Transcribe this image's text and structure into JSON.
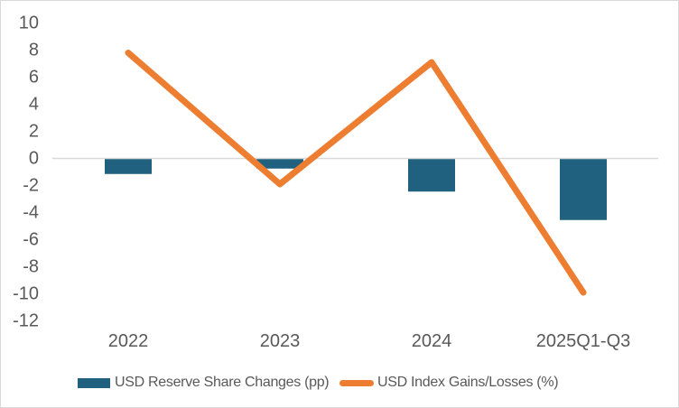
{
  "chart_data": {
    "type": "combo",
    "categories": [
      "2022",
      "2023",
      "2024",
      "2025Q1-Q3"
    ],
    "series": [
      {
        "name": "USD Reserve Share Changes (pp)",
        "type": "bar",
        "values": [
          -1.1,
          -0.7,
          -2.4,
          -4.5
        ],
        "color": "#1f617f"
      },
      {
        "name": "USD Index Gains/Losses (%)",
        "type": "line",
        "values": [
          7.8,
          -1.9,
          7.1,
          -9.9
        ],
        "color": "#ed7d31"
      }
    ],
    "title": "",
    "xlabel": "",
    "ylabel": "",
    "ylim": [
      -12,
      10
    ],
    "ytick_step": 2,
    "yticks": [
      10,
      8,
      6,
      4,
      2,
      0,
      -2,
      -4,
      -6,
      -8,
      -10,
      -12
    ],
    "grid": false,
    "legend_position": "bottom"
  },
  "colors": {
    "bar": "#1f617f",
    "line": "#ed7d31",
    "zero_line": "#d9d9d9",
    "tick_label": "#595959",
    "frame_border": "#d9d9d9",
    "background": "#ffffff"
  }
}
